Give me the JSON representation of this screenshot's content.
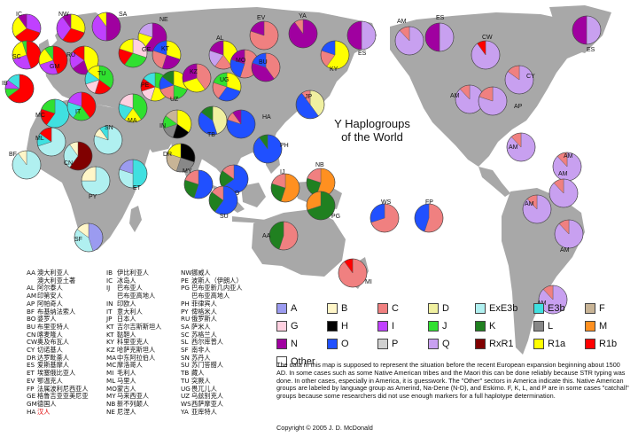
{
  "title": {
    "line1": "Y Haplogroups",
    "line2": "of the World"
  },
  "colors": {
    "A": "#9b9bf0",
    "B": "#fff6c8",
    "C": "#f08080",
    "D": "#f0f0a0",
    "ExE3b": "#b0f0f0",
    "E3b": "#40e0e0",
    "F": "#c8b496",
    "G": "#ffd0e0",
    "H": "#000000",
    "I": "#c040ff",
    "J": "#30e030",
    "K": "#208020",
    "L": "#888888",
    "M": "#ff9020",
    "N": "#a000a0",
    "O": "#2050ff",
    "P": "#d0d0d0",
    "Q": "#c8a0f0",
    "RxR1": "#800000",
    "R1a": "#ffff00",
    "R1b": "#ff0000",
    "Other": "#ffffff"
  },
  "legend": [
    {
      "key": "A",
      "label": "A"
    },
    {
      "key": "B",
      "label": "B"
    },
    {
      "key": "C",
      "label": "C"
    },
    {
      "key": "D",
      "label": "D"
    },
    {
      "key": "ExE3b",
      "label": "ExE3b"
    },
    {
      "key": "E3b",
      "label": "E3b"
    },
    {
      "key": "F",
      "label": "F"
    },
    {
      "key": "G",
      "label": "G"
    },
    {
      "key": "H",
      "label": "H"
    },
    {
      "key": "I",
      "label": "I"
    },
    {
      "key": "J",
      "label": "J"
    },
    {
      "key": "K",
      "label": "K"
    },
    {
      "key": "L",
      "label": "L"
    },
    {
      "key": "M",
      "label": "M"
    },
    {
      "key": "N",
      "label": "N"
    },
    {
      "key": "O",
      "label": "O"
    },
    {
      "key": "P",
      "label": "P"
    },
    {
      "key": "Q",
      "label": "Q"
    },
    {
      "key": "RxR1",
      "label": "RxR1"
    },
    {
      "key": "R1a",
      "label": "R1a"
    },
    {
      "key": "R1b",
      "label": "R1b"
    },
    {
      "key": "Other",
      "label": "Other"
    }
  ],
  "populations": [
    {
      "code": "IC",
      "mix": [
        [
          "I",
          30
        ],
        [
          "R1b",
          35
        ],
        [
          "R1a",
          25
        ],
        [
          "N",
          10
        ]
      ]
    },
    {
      "code": "NW",
      "mix": [
        [
          "R1a",
          30
        ],
        [
          "R1b",
          30
        ],
        [
          "I",
          30
        ],
        [
          "N",
          10
        ]
      ]
    },
    {
      "code": "SA",
      "mix": [
        [
          "N",
          50
        ],
        [
          "I",
          40
        ],
        [
          "R1a",
          10
        ]
      ]
    },
    {
      "code": "SC",
      "mix": [
        [
          "R1b",
          45
        ],
        [
          "I",
          25
        ],
        [
          "R1a",
          25
        ],
        [
          "J",
          5
        ]
      ]
    },
    {
      "code": "GM",
      "mix": [
        [
          "R1b",
          45
        ],
        [
          "I",
          25
        ],
        [
          "R1a",
          20
        ],
        [
          "J",
          10
        ]
      ]
    },
    {
      "code": "RU",
      "mix": [
        [
          "R1a",
          45
        ],
        [
          "N",
          20
        ],
        [
          "I",
          20
        ],
        [
          "R1b",
          15
        ]
      ]
    },
    {
      "code": "NE",
      "mix": [
        [
          "N",
          60
        ],
        [
          "R1a",
          20
        ],
        [
          "Q",
          20
        ]
      ]
    },
    {
      "code": "KT",
      "mix": [
        [
          "R1a",
          30
        ],
        [
          "N",
          25
        ],
        [
          "C",
          25
        ],
        [
          "O",
          20
        ]
      ]
    },
    {
      "code": "GE",
      "mix": [
        [
          "G",
          30
        ],
        [
          "J",
          30
        ],
        [
          "R1b",
          20
        ],
        [
          "R1a",
          20
        ]
      ]
    },
    {
      "code": "IB",
      "mix": [
        [
          "R1b",
          65
        ],
        [
          "J",
          10
        ],
        [
          "I",
          10
        ],
        [
          "E3b",
          15
        ]
      ]
    },
    {
      "code": "TU",
      "mix": [
        [
          "J",
          35
        ],
        [
          "R1b",
          20
        ],
        [
          "G",
          15
        ],
        [
          "E3b",
          15
        ],
        [
          "R1a",
          15
        ]
      ]
    },
    {
      "code": "MC",
      "mix": [
        [
          "E3b",
          60
        ],
        [
          "R1b",
          20
        ],
        [
          "J",
          20
        ]
      ]
    },
    {
      "code": "IT",
      "mix": [
        [
          "R1b",
          40
        ],
        [
          "J",
          20
        ],
        [
          "E3b",
          20
        ],
        [
          "I",
          20
        ]
      ]
    },
    {
      "code": "MA",
      "mix": [
        [
          "J",
          40
        ],
        [
          "R1a",
          20
        ],
        [
          "E3b",
          20
        ],
        [
          "G",
          20
        ]
      ]
    },
    {
      "code": "PE",
      "mix": [
        [
          "J",
          30
        ],
        [
          "R1a",
          25
        ],
        [
          "G",
          15
        ],
        [
          "R1b",
          15
        ],
        [
          "E3b",
          15
        ]
      ]
    },
    {
      "code": "EV",
      "mix": [
        [
          "C",
          80
        ],
        [
          "N",
          20
        ]
      ]
    },
    {
      "code": "YA",
      "mix": [
        [
          "N",
          90
        ],
        [
          "C",
          10
        ]
      ]
    },
    {
      "code": "AL",
      "mix": [
        [
          "R1a",
          40
        ],
        [
          "C",
          20
        ],
        [
          "Q",
          20
        ],
        [
          "N",
          20
        ]
      ]
    },
    {
      "code": "MO",
      "mix": [
        [
          "C",
          55
        ],
        [
          "O",
          25
        ],
        [
          "N",
          20
        ]
      ]
    },
    {
      "code": "BU",
      "mix": [
        [
          "C",
          40
        ],
        [
          "N",
          40
        ],
        [
          "O",
          20
        ]
      ]
    },
    {
      "code": "KY",
      "mix": [
        [
          "R1a",
          60
        ],
        [
          "C",
          20
        ],
        [
          "O",
          20
        ]
      ]
    },
    {
      "code": "ES",
      "mix": [
        [
          "Q",
          50
        ],
        [
          "N",
          50
        ]
      ]
    },
    {
      "code": "UZ",
      "mix": [
        [
          "R1a",
          30
        ],
        [
          "J",
          20
        ],
        [
          "C",
          20
        ],
        [
          "O",
          15
        ],
        [
          "K",
          15
        ]
      ]
    },
    {
      "code": "KZ",
      "mix": [
        [
          "C",
          40
        ],
        [
          "R1a",
          30
        ],
        [
          "N",
          30
        ]
      ]
    },
    {
      "code": "UG",
      "mix": [
        [
          "R1a",
          30
        ],
        [
          "O",
          30
        ],
        [
          "C",
          20
        ],
        [
          "J",
          20
        ]
      ]
    },
    {
      "code": "IN",
      "mix": [
        [
          "R1a",
          35
        ],
        [
          "H",
          20
        ],
        [
          "L",
          15
        ],
        [
          "J",
          15
        ],
        [
          "F",
          15
        ]
      ]
    },
    {
      "code": "TB",
      "mix": [
        [
          "D",
          45
        ],
        [
          "O",
          40
        ],
        [
          "K",
          15
        ]
      ]
    },
    {
      "code": "HA",
      "mix": [
        [
          "O",
          80
        ],
        [
          "C",
          10
        ],
        [
          "N",
          10
        ]
      ]
    },
    {
      "code": "JP",
      "mix": [
        [
          "D",
          40
        ],
        [
          "O",
          50
        ],
        [
          "C",
          10
        ]
      ]
    },
    {
      "code": "DR",
      "mix": [
        [
          "H",
          30
        ],
        [
          "L",
          25
        ],
        [
          "F",
          25
        ],
        [
          "R1a",
          20
        ]
      ]
    },
    {
      "code": "ML",
      "mix": [
        [
          "ExE3b",
          70
        ],
        [
          "E3b",
          15
        ],
        [
          "R1b",
          15
        ]
      ]
    },
    {
      "code": "SN",
      "mix": [
        [
          "ExE3b",
          80
        ],
        [
          "B",
          10
        ],
        [
          "E3b",
          10
        ]
      ]
    },
    {
      "code": "BF",
      "mix": [
        [
          "ExE3b",
          90
        ],
        [
          "B",
          10
        ]
      ]
    },
    {
      "code": "CN",
      "mix": [
        [
          "RxR1",
          60
        ],
        [
          "ExE3b",
          30
        ],
        [
          "B",
          10
        ]
      ]
    },
    {
      "code": "ET",
      "mix": [
        [
          "E3b",
          50
        ],
        [
          "ExE3b",
          30
        ],
        [
          "A",
          20
        ]
      ]
    },
    {
      "code": "PY",
      "mix": [
        [
          "ExE3b",
          75
        ],
        [
          "B",
          25
        ]
      ]
    },
    {
      "code": "SF",
      "mix": [
        [
          "A",
          45
        ],
        [
          "ExE3b",
          40
        ],
        [
          "B",
          15
        ]
      ]
    },
    {
      "code": "MY",
      "mix": [
        [
          "O",
          55
        ],
        [
          "K",
          25
        ],
        [
          "C",
          20
        ]
      ]
    },
    {
      "code": "PH",
      "mix": [
        [
          "O",
          90
        ],
        [
          "K",
          10
        ]
      ]
    },
    {
      "code": "BO",
      "mix": [
        [
          "O",
          65
        ],
        [
          "K",
          20
        ],
        [
          "C",
          15
        ]
      ]
    },
    {
      "code": "SU",
      "mix": [
        [
          "O",
          60
        ],
        [
          "K",
          25
        ],
        [
          "C",
          15
        ]
      ]
    },
    {
      "code": "IJ",
      "mix": [
        [
          "M",
          55
        ],
        [
          "K",
          25
        ],
        [
          "C",
          20
        ]
      ]
    },
    {
      "code": "NB",
      "mix": [
        [
          "M",
          55
        ],
        [
          "K",
          25
        ],
        [
          "C",
          20
        ]
      ]
    },
    {
      "code": "PG",
      "mix": [
        [
          "K",
          70
        ],
        [
          "M",
          30
        ]
      ]
    },
    {
      "code": "AA",
      "mix": [
        [
          "C",
          55
        ],
        [
          "K",
          45
        ]
      ]
    },
    {
      "code": "WS",
      "mix": [
        [
          "C",
          70
        ],
        [
          "O",
          30
        ]
      ]
    },
    {
      "code": "FP",
      "mix": [
        [
          "C",
          55
        ],
        [
          "O",
          45
        ]
      ]
    },
    {
      "code": "MI",
      "mix": [
        [
          "C",
          90
        ],
        [
          "R1b",
          10
        ]
      ]
    },
    {
      "code": "AM",
      "mix": [
        [
          "Q",
          88
        ],
        [
          "C",
          12
        ]
      ]
    },
    {
      "code": "CW",
      "mix": [
        [
          "Q",
          90
        ],
        [
          "R1b",
          10
        ]
      ]
    },
    {
      "code": "CY",
      "mix": [
        [
          "Q",
          85
        ],
        [
          "C",
          15
        ]
      ]
    },
    {
      "code": "AP",
      "mix": [
        [
          "Q",
          80
        ],
        [
          "C",
          20
        ]
      ]
    }
  ],
  "abbreviations": [
    [
      [
        "AA",
        "澳大利亚人"
      ],
      [
        "",
        "澳大利亚土著"
      ],
      [
        "AL",
        "阿尔泰人"
      ],
      [
        "AM",
        "印第安人"
      ],
      [
        "AP",
        "阿帕奇人"
      ],
      [
        "BF",
        "布基纳法索人"
      ],
      [
        "BO",
        "婆罗人"
      ],
      [
        "BU",
        "布里亚特人"
      ],
      [
        "CN",
        "喀麦隆人"
      ],
      [
        "CW",
        "奥及布瓦人"
      ],
      [
        "CY",
        "切诺基人"
      ],
      [
        "DR",
        "达罗毗荼人"
      ],
      [
        "ES",
        "爱斯基摩人"
      ],
      [
        "ET",
        "埃塞俄比亚人"
      ],
      [
        "EV",
        "鄂温克人"
      ],
      [
        "FP",
        "法属波利尼西亚人"
      ],
      [
        "GE",
        "格鲁吉亚亚美尼亚"
      ],
      [
        "GM",
        "德国人"
      ],
      [
        "HA",
        "汉人"
      ]
    ],
    [
      [
        "IB",
        "伊比利亚人"
      ],
      [
        "IC",
        "冰岛人"
      ],
      [
        "IJ",
        "巴布亚人"
      ],
      [
        "",
        "巴布亚高地人"
      ],
      [
        "IN",
        "印欧人"
      ],
      [
        "IT",
        "意大利人"
      ],
      [
        "JP",
        "日本人"
      ],
      [
        "KT",
        "吉尔吉斯斯坦人"
      ],
      [
        "KT",
        "鞑靼人"
      ],
      [
        "KY",
        "科里亚克人"
      ],
      [
        "KZ",
        "哈萨克斯坦人"
      ],
      [
        "MA",
        "中东阿拉伯人"
      ],
      [
        "MC",
        "摩洛哥人"
      ],
      [
        "MI",
        "毛利人"
      ],
      [
        "ML",
        "马里人"
      ],
      [
        "MO",
        "蒙古人"
      ],
      [
        "MY",
        "马来西亚人"
      ],
      [
        "NB",
        "新不列颠人"
      ],
      [
        "NE",
        "尼涅人"
      ]
    ],
    [
      [
        "NW",
        "挪威人"
      ],
      [
        "PE",
        "波斯人（伊朗人）"
      ],
      [
        "PG",
        "巴布亚新几内亚人"
      ],
      [
        "",
        "巴布亚高地人"
      ],
      [
        "PH",
        "菲律宾人"
      ],
      [
        "PY",
        "俾格米人"
      ],
      [
        "RU",
        "俄罗斯人"
      ],
      [
        "SA",
        "萨米人"
      ],
      [
        "SC",
        "苏格兰人"
      ],
      [
        "SL",
        "西尔库普人"
      ],
      [
        "SF",
        "南非人"
      ],
      [
        "SN",
        "苏丹人"
      ],
      [
        "SU",
        "苏门答腊人"
      ],
      [
        "TB",
        "藏人"
      ],
      [
        "TU",
        "突厥人"
      ],
      [
        "UG",
        "畏兀儿人"
      ],
      [
        "UZ",
        "乌兹别克人"
      ],
      [
        "WS",
        "西萨摩亚人"
      ],
      [
        "YA",
        "亚库特人"
      ]
    ]
  ],
  "note": "The data in this map is supposed to represent the situation before the recent European expansion beginning about 1500 AD. In some cases such as some Native American tribes and the Maori this can be done reliably because STR typing was done. In other cases, especially in America, it is guesswork. The \"Other\" sectors in America indicate this. Native American groups are labeled by language group as Amerind, Na-Dene (N-D), and Eskimo.  F, K, L, and P are in some cases \"catchall\" groups because some researchers did not use enough markers for a full haplotype determination.",
  "copyright": "Copyright © 2005  J. D. McDonald"
}
